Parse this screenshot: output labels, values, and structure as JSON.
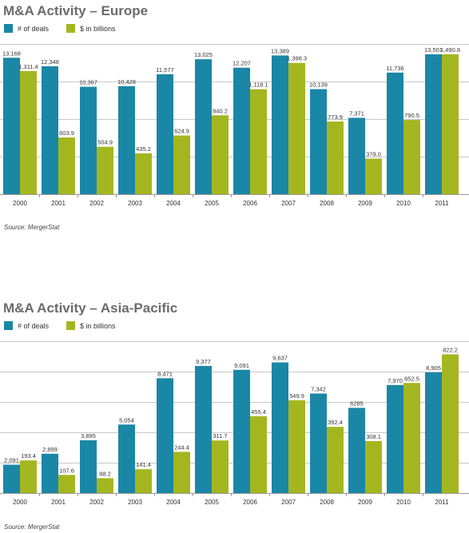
{
  "colors": {
    "deals": "#1b87a6",
    "value": "#a4b61f",
    "grid": "#c8c8c8",
    "axis": "#999999"
  },
  "chart_data": [
    {
      "type": "bar",
      "title": "M&A Activity – Europe",
      "legend_placement": "top-left",
      "grid": true,
      "categories": [
        "2000",
        "2001",
        "2002",
        "2003",
        "2004",
        "2005",
        "2006",
        "2007",
        "2008",
        "2009",
        "2010",
        "2011"
      ],
      "series": [
        {
          "name": "# of deals",
          "values": [
            13168,
            12348,
            10367,
            10428,
            11577,
            13025,
            12207,
            13389,
            10139,
            7371,
            11736,
            13501
          ],
          "labels": [
            "13,168",
            "12,348",
            "10,367",
            "10,428",
            "11,577",
            "13,025",
            "12,207",
            "13,389",
            "10,139",
            "7,371",
            "11,736",
            "13,501"
          ]
        },
        {
          "name": "$ in billions",
          "values": [
            1311.4,
            603.9,
            504.9,
            435.2,
            624.9,
            840.2,
            1118.1,
            1398.3,
            773.9,
            379.0,
            790.5,
            1490.8
          ],
          "labels": [
            "1,311.4",
            "603.9",
            "504.9",
            "435.2",
            "624.9",
            "840.2",
            "1,118.1",
            "1,398.3",
            "773.9",
            "379.0",
            "790.5",
            "1,490.8"
          ]
        }
      ],
      "source": "Source: MergerStat"
    },
    {
      "type": "bar",
      "title": "M&A Activity – Asia-Pacific",
      "legend_placement": "top-left",
      "grid": true,
      "categories": [
        "2000",
        "2001",
        "2002",
        "2003",
        "2004",
        "2005",
        "2006",
        "2007",
        "2008",
        "2009",
        "2010",
        "2011"
      ],
      "series": [
        {
          "name": "# of deals",
          "values": [
            2091,
            2899,
            3895,
            5054,
            8471,
            9377,
            9091,
            9637,
            7342,
            6285,
            7970,
            8905
          ],
          "labels": [
            "2,091",
            "2,899",
            "3,895",
            "5,054",
            "8,471",
            "9,377",
            "9,091",
            "9,637",
            "7,342",
            "6285",
            "7,970",
            "8,905"
          ]
        },
        {
          "name": "$ in billions",
          "values": [
            193.4,
            107.6,
            88.2,
            141.4,
            244.4,
            311.7,
            455.4,
            549.9,
            392.4,
            308.1,
            652.5,
            822.2
          ],
          "labels": [
            "193.4",
            "107.6",
            "88.2",
            "141.4",
            "244.4",
            "311.7",
            "455.4",
            "549.9",
            "392.4",
            "308.1",
            "652.5",
            "822.2"
          ]
        }
      ],
      "source": "Source: MergerStat"
    }
  ]
}
